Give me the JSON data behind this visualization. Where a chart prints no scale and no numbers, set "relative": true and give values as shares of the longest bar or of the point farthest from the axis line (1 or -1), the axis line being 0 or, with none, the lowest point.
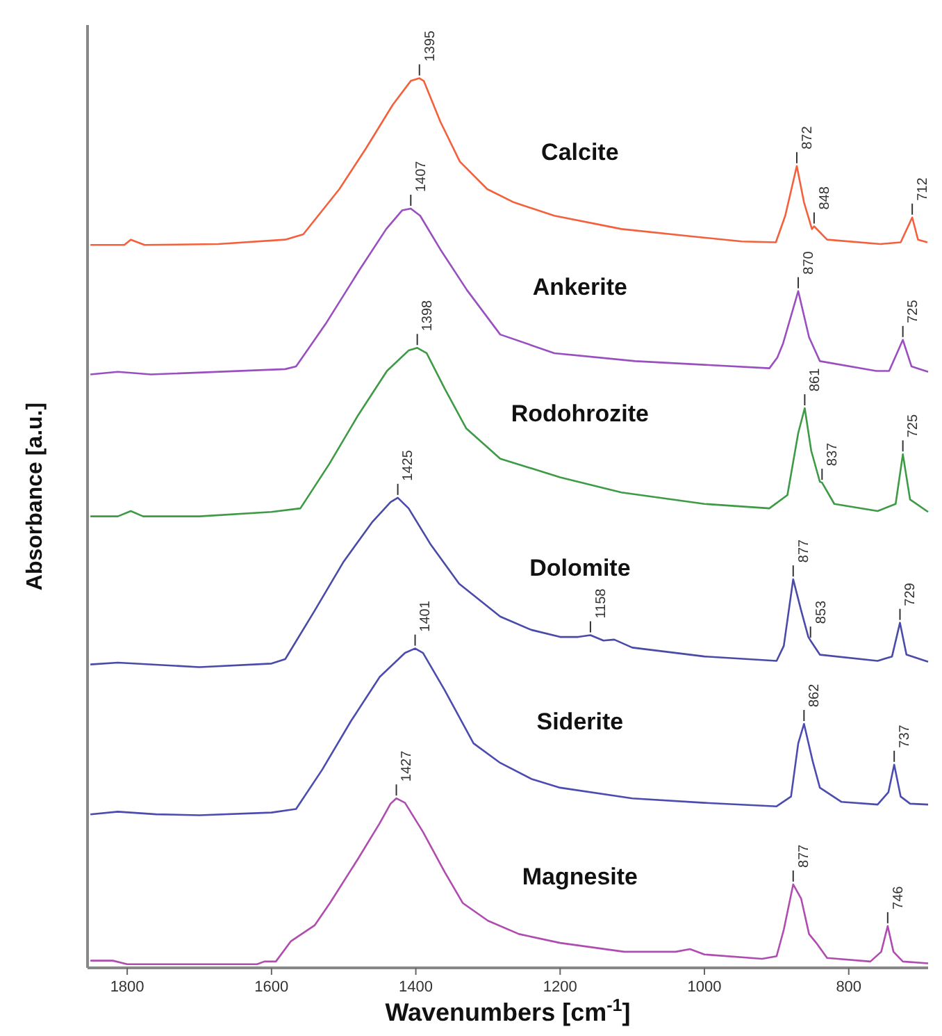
{
  "chart_data": {
    "type": "line",
    "relative": true,
    "xlabel": "Wavenumbers [cm$^{-1}$]",
    "ylabel": "Absorbance [a.u.]",
    "xlim": [
      1855,
      690
    ],
    "xticks": [
      1800,
      1600,
      1400,
      1200,
      1000,
      800
    ],
    "grid": false,
    "marker": "none",
    "line_style": "solid",
    "series": [
      {
        "name": "Calcite",
        "color": "#f4603c",
        "x": [
          1851,
          1804,
          1795,
          1776,
          1674,
          1581,
          1556,
          1506,
          1469,
          1432,
          1407,
          1395,
          1389,
          1366,
          1339,
          1301,
          1264,
          1208,
          1115,
          1022,
          948,
          901,
          888,
          872,
          862,
          851,
          848,
          830,
          756,
          728,
          712,
          704,
          691
        ],
        "values": [
          0.812,
          0.812,
          0.818,
          0.812,
          0.813,
          0.818,
          0.824,
          0.875,
          0.921,
          0.97,
          0.997,
          1.0,
          0.997,
          0.951,
          0.906,
          0.875,
          0.86,
          0.845,
          0.83,
          0.822,
          0.816,
          0.815,
          0.845,
          0.901,
          0.86,
          0.83,
          0.833,
          0.818,
          0.813,
          0.815,
          0.843,
          0.818,
          0.815
        ]
      },
      {
        "name": "Ankerite",
        "color": "#9a4fc0",
        "x": [
          1851,
          1813,
          1767,
          1581,
          1566,
          1525,
          1478,
          1441,
          1419,
          1407,
          1394,
          1366,
          1329,
          1283,
          1208,
          1096,
          910,
          899,
          891,
          870,
          855,
          840,
          762,
          744,
          725,
          713,
          690
        ],
        "values": [
          0.666,
          0.669,
          0.666,
          0.672,
          0.675,
          0.723,
          0.784,
          0.83,
          0.851,
          0.853,
          0.845,
          0.807,
          0.761,
          0.711,
          0.69,
          0.681,
          0.673,
          0.685,
          0.701,
          0.76,
          0.708,
          0.681,
          0.67,
          0.67,
          0.705,
          0.675,
          0.669
        ]
      },
      {
        "name": "Rodohrozite",
        "color": "#3d9a45",
        "x": [
          1851,
          1813,
          1795,
          1778,
          1700,
          1600,
          1560,
          1520,
          1480,
          1440,
          1410,
          1398,
          1385,
          1360,
          1330,
          1283,
          1200,
          1115,
          1000,
          910,
          885,
          870,
          861,
          852,
          840,
          837,
          820,
          760,
          735,
          725,
          715,
          690
        ],
        "values": [
          0.506,
          0.506,
          0.512,
          0.506,
          0.506,
          0.511,
          0.515,
          0.565,
          0.62,
          0.67,
          0.693,
          0.696,
          0.69,
          0.65,
          0.605,
          0.571,
          0.55,
          0.533,
          0.52,
          0.515,
          0.53,
          0.6,
          0.628,
          0.58,
          0.545,
          0.544,
          0.52,
          0.512,
          0.52,
          0.576,
          0.525,
          0.511
        ]
      },
      {
        "name": "Dolomite",
        "color": "#4a4aa8",
        "x": [
          1851,
          1813,
          1700,
          1600,
          1581,
          1540,
          1500,
          1460,
          1435,
          1425,
          1410,
          1380,
          1340,
          1283,
          1240,
          1200,
          1175,
          1158,
          1140,
          1125,
          1100,
          1000,
          900,
          890,
          877,
          866,
          856,
          853,
          840,
          760,
          740,
          729,
          720,
          690
        ],
        "values": [
          0.339,
          0.341,
          0.336,
          0.34,
          0.345,
          0.4,
          0.455,
          0.5,
          0.522,
          0.527,
          0.515,
          0.475,
          0.43,
          0.393,
          0.378,
          0.37,
          0.37,
          0.372,
          0.366,
          0.367,
          0.358,
          0.348,
          0.343,
          0.36,
          0.435,
          0.4,
          0.37,
          0.366,
          0.35,
          0.343,
          0.348,
          0.386,
          0.35,
          0.342
        ]
      },
      {
        "name": "Siderite",
        "color": "#4c4cb0",
        "x": [
          1851,
          1813,
          1760,
          1700,
          1600,
          1566,
          1530,
          1490,
          1450,
          1415,
          1401,
          1390,
          1360,
          1320,
          1283,
          1240,
          1200,
          1100,
          1000,
          900,
          880,
          870,
          862,
          850,
          840,
          810,
          760,
          745,
          737,
          728,
          715,
          690
        ],
        "values": [
          0.17,
          0.173,
          0.17,
          0.169,
          0.172,
          0.176,
          0.22,
          0.275,
          0.325,
          0.352,
          0.357,
          0.352,
          0.31,
          0.25,
          0.228,
          0.21,
          0.2,
          0.188,
          0.183,
          0.179,
          0.19,
          0.25,
          0.272,
          0.23,
          0.2,
          0.184,
          0.181,
          0.195,
          0.226,
          0.19,
          0.182,
          0.181
        ]
      },
      {
        "name": "Magnesite",
        "color": "#b04cb0",
        "x": [
          1851,
          1820,
          1800,
          1700,
          1620,
          1610,
          1594,
          1573,
          1540,
          1519,
          1480,
          1450,
          1435,
          1427,
          1415,
          1390,
          1360,
          1335,
          1300,
          1257,
          1200,
          1111,
          1040,
          1020,
          1000,
          920,
          900,
          890,
          877,
          866,
          855,
          845,
          830,
          770,
          755,
          746,
          738,
          725,
          690
        ],
        "values": [
          0.005,
          0.005,
          0.001,
          0.001,
          0.001,
          0.004,
          0.004,
          0.027,
          0.045,
          0.07,
          0.12,
          0.16,
          0.182,
          0.188,
          0.183,
          0.15,
          0.105,
          0.07,
          0.05,
          0.035,
          0.025,
          0.015,
          0.015,
          0.018,
          0.012,
          0.007,
          0.01,
          0.04,
          0.091,
          0.075,
          0.035,
          0.025,
          0.008,
          0.004,
          0.015,
          0.044,
          0.015,
          0.004,
          0.002
        ]
      }
    ],
    "annotations": [
      {
        "text": "1395",
        "x": 1395,
        "y": 1.0
      },
      {
        "text": "872",
        "x": 872,
        "y": 0.901
      },
      {
        "text": "848",
        "x": 848,
        "y": 0.833
      },
      {
        "text": "712",
        "x": 712,
        "y": 0.843
      },
      {
        "text": "1407",
        "x": 1407,
        "y": 0.853
      },
      {
        "text": "870",
        "x": 870,
        "y": 0.76
      },
      {
        "text": "725",
        "x": 725,
        "y": 0.705
      },
      {
        "text": "1398",
        "x": 1398,
        "y": 0.696
      },
      {
        "text": "861",
        "x": 861,
        "y": 0.628
      },
      {
        "text": "837",
        "x": 837,
        "y": 0.544
      },
      {
        "text": "725",
        "x": 725,
        "y": 0.576
      },
      {
        "text": "1425",
        "x": 1425,
        "y": 0.527
      },
      {
        "text": "1158",
        "x": 1158,
        "y": 0.372
      },
      {
        "text": "877",
        "x": 877,
        "y": 0.435
      },
      {
        "text": "853",
        "x": 853,
        "y": 0.366
      },
      {
        "text": "729",
        "x": 729,
        "y": 0.386
      },
      {
        "text": "1401",
        "x": 1401,
        "y": 0.357
      },
      {
        "text": "862",
        "x": 862,
        "y": 0.272
      },
      {
        "text": "737",
        "x": 737,
        "y": 0.226
      },
      {
        "text": "1427",
        "x": 1427,
        "y": 0.188
      },
      {
        "text": "877",
        "x": 877,
        "y": 0.091
      },
      {
        "text": "746",
        "x": 746,
        "y": 0.044
      }
    ]
  }
}
